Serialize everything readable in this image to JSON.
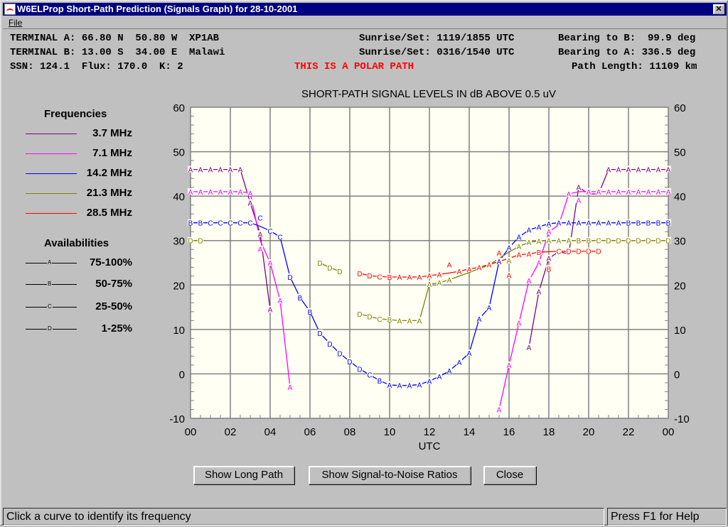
{
  "window": {
    "title": "W6ELProp Short-Path Prediction (Signals Graph) for 28-10-2001",
    "close": "✕"
  },
  "menu": {
    "file": "File"
  },
  "header": {
    "term_a": "TERMINAL A: 66.80 N  50.80 W  XP1AB",
    "term_b": "TERMINAL B: 13.00 S  34.00 E  Malawi",
    "params": "SSN: 124.1  Flux: 170.0  K: 2",
    "polar": "THIS IS A POLAR PATH",
    "sun_a": "Sunrise/Set: 1119/1855 UTC",
    "sun_b": "Sunrise/Set: 0316/1540 UTC",
    "bear_b": "Bearing to B:  99.9 deg",
    "bear_a": "Bearing to A: 336.5 deg",
    "length": "Path Length: 11109 km"
  },
  "legend": {
    "freq_title": "Frequencies",
    "frequencies": [
      {
        "label": "3.7 MHz",
        "color": "#800080"
      },
      {
        "label": "7.1 MHz",
        "color": "#ff00ff"
      },
      {
        "label": "14.2 MHz",
        "color": "#0000ff"
      },
      {
        "label": "21.3 MHz",
        "color": "#808000"
      },
      {
        "label": "28.5 MHz",
        "color": "#ff0000"
      }
    ],
    "avail_title": "Availabilities",
    "availabilities": [
      {
        "code": "A",
        "label": "75-100%"
      },
      {
        "code": "B",
        "label": "50-75%"
      },
      {
        "code": "C",
        "label": "25-50%"
      },
      {
        "code": "D",
        "label": "1-25%"
      }
    ]
  },
  "chart_data": {
    "type": "line",
    "title": "SHORT-PATH SIGNAL LEVELS IN dB ABOVE 0.5 uV",
    "xlabel": "UTC",
    "ylabel": "",
    "xlim": [
      0,
      24
    ],
    "ylim": [
      -10,
      60
    ],
    "xticks": [
      "00",
      "02",
      "04",
      "06",
      "08",
      "10",
      "12",
      "14",
      "16",
      "18",
      "20",
      "22",
      "00"
    ],
    "yticks": [
      "60",
      "50",
      "40",
      "30",
      "20",
      "10",
      "0",
      "-10"
    ],
    "grid": true,
    "series": [
      {
        "name": "3.7 MHz",
        "color": "#800080",
        "segments": [
          [
            [
              0,
              46,
              "A"
            ],
            [
              0.5,
              46,
              "A"
            ],
            [
              1,
              46,
              "A"
            ],
            [
              1.5,
              46,
              "A"
            ],
            [
              2,
              46,
              "A"
            ],
            [
              2.5,
              46,
              "A"
            ],
            [
              3,
              38.5,
              "A"
            ],
            [
              3.5,
              31.5,
              "A"
            ],
            [
              4,
              14.5,
              "A"
            ]
          ],
          [
            [
              17,
              6,
              "A"
            ],
            [
              17.5,
              18.5,
              "A"
            ],
            [
              18,
              26,
              "A"
            ],
            [
              18.5,
              27.5,
              ""
            ],
            [
              19,
              27,
              ""
            ],
            [
              19.5,
              42,
              "A"
            ],
            [
              20,
              40.5,
              ""
            ],
            [
              20.5,
              40.5,
              ""
            ],
            [
              21,
              46,
              "A"
            ],
            [
              21.5,
              46,
              "A"
            ],
            [
              22,
              46,
              "A"
            ],
            [
              22.5,
              46,
              "A"
            ],
            [
              23,
              46,
              "A"
            ],
            [
              23.5,
              46,
              "A"
            ],
            [
              24,
              46,
              "A"
            ]
          ]
        ]
      },
      {
        "name": "7.1 MHz",
        "color": "#ff00ff",
        "segments": [
          [
            [
              0,
              41,
              "A"
            ],
            [
              0.5,
              41,
              "A"
            ],
            [
              1,
              41,
              "A"
            ],
            [
              1.5,
              41,
              "A"
            ],
            [
              2,
              41,
              "A"
            ],
            [
              2.5,
              41,
              "A"
            ],
            [
              3,
              40.7,
              "A"
            ],
            [
              3.5,
              30,
              "A"
            ],
            [
              4,
              25,
              "A"
            ],
            [
              4.5,
              16.5,
              "A"
            ],
            [
              5,
              -3,
              "A"
            ]
          ],
          [
            [
              15.5,
              -8,
              "A"
            ],
            [
              16,
              2,
              "A"
            ],
            [
              16.5,
              11.5,
              "A"
            ],
            [
              17,
              21,
              "A"
            ],
            [
              17.5,
              25,
              "A"
            ],
            [
              18,
              32,
              "A"
            ],
            [
              18.5,
              33.5,
              ""
            ],
            [
              19,
              40.5,
              "A"
            ],
            [
              19.5,
              41,
              "A"
            ],
            [
              20,
              41,
              "A"
            ],
            [
              20.5,
              41,
              "A"
            ],
            [
              21,
              41,
              "A"
            ],
            [
              21.5,
              41,
              "A"
            ],
            [
              22,
              41,
              "A"
            ],
            [
              22.5,
              41,
              "A"
            ],
            [
              23,
              41,
              "A"
            ],
            [
              23.5,
              41,
              "A"
            ],
            [
              24,
              41,
              "A"
            ]
          ]
        ]
      },
      {
        "name": "14.2 MHz",
        "color": "#0000ff",
        "segments": [
          [
            [
              0,
              34,
              "B"
            ],
            [
              0.5,
              34,
              "B"
            ],
            [
              1,
              34,
              "C"
            ],
            [
              1.5,
              34,
              "C"
            ],
            [
              2,
              34,
              "C"
            ],
            [
              2.5,
              34,
              "C"
            ],
            [
              3,
              34,
              "C"
            ],
            [
              3.5,
              33.2,
              "C"
            ],
            [
              4,
              32.2,
              "C"
            ],
            [
              4.5,
              30.8,
              "C"
            ],
            [
              5,
              21.8,
              "D"
            ],
            [
              5.5,
              17.2,
              "B"
            ],
            [
              6,
              14,
              "B"
            ],
            [
              6.5,
              9.2,
              "D"
            ],
            [
              7,
              6.8,
              "D"
            ],
            [
              7.5,
              4.6,
              "D"
            ],
            [
              8,
              2.8,
              "D"
            ],
            [
              8.5,
              1.1,
              "D"
            ],
            [
              9,
              -0.2,
              "C"
            ],
            [
              9.5,
              -1.5,
              "B"
            ],
            [
              10,
              -2.5,
              "A"
            ],
            [
              10.5,
              -2.6,
              "A"
            ],
            [
              11,
              -2.6,
              "A"
            ],
            [
              11.5,
              -2.4,
              "A"
            ],
            [
              12,
              -1.6,
              "A"
            ],
            [
              12.5,
              -0.6,
              "A"
            ],
            [
              13,
              0.7,
              "A"
            ],
            [
              13.5,
              2.6,
              "A"
            ],
            [
              14,
              4.7,
              "A"
            ],
            [
              14.5,
              12.4,
              "A"
            ],
            [
              15,
              14.9,
              "A"
            ],
            [
              15.5,
              25.3,
              "A"
            ],
            [
              16,
              28.4,
              "A"
            ],
            [
              16.5,
              30.8,
              "A"
            ],
            [
              17,
              32.4,
              "A"
            ],
            [
              17.5,
              33.1,
              "A"
            ],
            [
              18,
              33.8,
              "A"
            ],
            [
              18.5,
              34,
              "A"
            ],
            [
              19,
              34,
              "A"
            ],
            [
              19.5,
              34,
              "A"
            ],
            [
              20,
              34,
              "A"
            ],
            [
              20.5,
              34,
              "A"
            ],
            [
              21,
              34,
              "A"
            ],
            [
              21.5,
              34,
              "A"
            ],
            [
              22,
              34,
              "B"
            ],
            [
              22.5,
              34,
              "B"
            ],
            [
              23,
              34,
              "B"
            ],
            [
              23.5,
              34,
              "B"
            ],
            [
              24,
              34,
              "B"
            ]
          ]
        ]
      },
      {
        "name": "21.3 MHz",
        "color": "#808000",
        "segments": [
          [
            [
              0,
              30,
              "D"
            ],
            [
              0.5,
              30,
              "D"
            ]
          ],
          [
            [
              6.5,
              25,
              "D"
            ],
            [
              7,
              23.9,
              "D"
            ],
            [
              7.5,
              23.1,
              "D"
            ]
          ],
          [
            [
              8.5,
              13.5,
              "D"
            ],
            [
              9,
              12.9,
              "D"
            ],
            [
              9.5,
              12.4,
              "C"
            ],
            [
              10,
              12.2,
              "B"
            ],
            [
              10.5,
              12,
              "A"
            ],
            [
              11,
              12,
              "A"
            ],
            [
              11.5,
              12,
              "A"
            ],
            [
              12,
              20.2,
              "A"
            ],
            [
              12.5,
              20.5,
              "A"
            ],
            [
              13,
              21.2,
              "A"
            ],
            [
              13.5,
              22,
              ""
            ],
            [
              14,
              22.8,
              ""
            ],
            [
              14.5,
              23.7,
              ""
            ],
            [
              15,
              24.5,
              ""
            ],
            [
              15.5,
              26,
              ""
            ],
            [
              16,
              27.4,
              "A"
            ],
            [
              16.5,
              28.7,
              "A"
            ],
            [
              17,
              29.6,
              "A"
            ],
            [
              17.5,
              29.9,
              "A"
            ],
            [
              18,
              30,
              "A"
            ],
            [
              18.5,
              30,
              "A"
            ],
            [
              19,
              30,
              "A"
            ],
            [
              19.5,
              30,
              "B"
            ],
            [
              20,
              30,
              "B"
            ],
            [
              20.5,
              30,
              "C"
            ],
            [
              21,
              30,
              "D"
            ],
            [
              21.5,
              30,
              "D"
            ],
            [
              22,
              30,
              "D"
            ],
            [
              22.5,
              30,
              "D"
            ],
            [
              23,
              30,
              "D"
            ],
            [
              23.5,
              30,
              "D"
            ],
            [
              24,
              30,
              "D"
            ]
          ]
        ]
      },
      {
        "name": "28.5 MHz",
        "color": "#ff0000",
        "segments": [
          [
            [
              8.5,
              22.6,
              "D"
            ],
            [
              9,
              22.1,
              "D"
            ],
            [
              9.5,
              21.9,
              "C"
            ],
            [
              10,
              21.8,
              "B"
            ],
            [
              10.5,
              21.8,
              "A"
            ],
            [
              11,
              21.8,
              "A"
            ],
            [
              11.5,
              21.8,
              "A"
            ],
            [
              12,
              22.1,
              "A"
            ],
            [
              12.5,
              22.4,
              "A"
            ],
            [
              13,
              22.7,
              "A"
            ],
            [
              13.5,
              23.1,
              "A"
            ],
            [
              14,
              23.6,
              "A"
            ],
            [
              14.5,
              24,
              "A"
            ],
            [
              15,
              24.6,
              "A"
            ],
            [
              15.5,
              25.3,
              "A"
            ],
            [
              16,
              26,
              "A"
            ],
            [
              16.5,
              26.8,
              "A"
            ],
            [
              17,
              27,
              "A"
            ],
            [
              17.5,
              27.4,
              "B"
            ],
            [
              18,
              27.5,
              "B"
            ],
            [
              18.5,
              27.6,
              "C"
            ],
            [
              19,
              27.6,
              "D"
            ],
            [
              19.5,
              27.6,
              "D"
            ],
            [
              20,
              27.6,
              "D"
            ],
            [
              20.5,
              27.6,
              "D"
            ]
          ]
        ]
      }
    ]
  },
  "buttons": {
    "long_path": "Show Long Path",
    "snr": "Show Signal-to-Noise Ratios",
    "close": "Close"
  },
  "status": {
    "left": "Click a curve to identify its frequency",
    "right": "Press F1 for Help"
  }
}
